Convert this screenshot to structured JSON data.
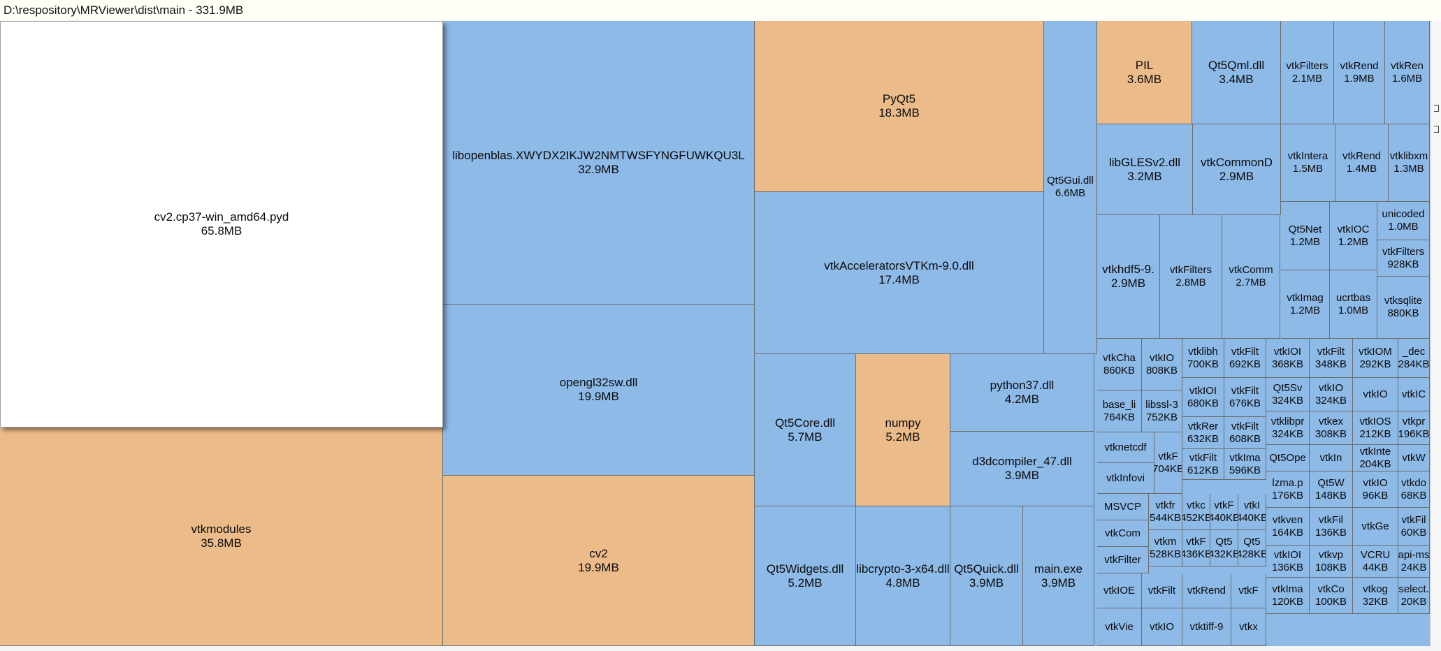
{
  "window": {
    "title": "D:\\respository\\MRViewer\\dist\\main - 331.9MB"
  },
  "colors": {
    "file": "#8ebae8",
    "folder": "#ecbb8a",
    "selected": "#ffffff",
    "border": "#6c6c6c"
  },
  "treemap": {
    "tiles": [
      {
        "name": "cv2.cp37-win_amd64.pyd",
        "size": "65.8MB",
        "kind": "selected"
      },
      {
        "name": "vtkmodules",
        "size": "35.8MB",
        "kind": "folder"
      },
      {
        "name": "libopenblas.XWYDX2IKJW2NMTWSFYNGFUWKQU3L",
        "size": "32.9MB",
        "kind": "file"
      },
      {
        "name": "opengl32sw.dll",
        "size": "19.9MB",
        "kind": "file"
      },
      {
        "name": "cv2",
        "size": "19.9MB",
        "kind": "folder"
      },
      {
        "name": "PyQt5",
        "size": "18.3MB",
        "kind": "folder"
      },
      {
        "name": "vtkAcceleratorsVTKm-9.0.dll",
        "size": "17.4MB",
        "kind": "file"
      },
      {
        "name": "Qt5Gui.dll",
        "size": "6.6MB",
        "kind": "file"
      },
      {
        "name": "Qt5Core.dll",
        "size": "5.7MB",
        "kind": "file"
      },
      {
        "name": "numpy",
        "size": "5.2MB",
        "kind": "folder"
      },
      {
        "name": "python37.dll",
        "size": "4.2MB",
        "kind": "file"
      },
      {
        "name": "d3dcompiler_47.dll",
        "size": "3.9MB",
        "kind": "file"
      },
      {
        "name": "Qt5Widgets.dll",
        "size": "5.2MB",
        "kind": "file"
      },
      {
        "name": "libcrypto-3-x64.dll",
        "size": "4.8MB",
        "kind": "file"
      },
      {
        "name": "Qt5Quick.dll",
        "size": "3.9MB",
        "kind": "file"
      },
      {
        "name": "main.exe",
        "size": "3.9MB",
        "kind": "file"
      },
      {
        "name": "PIL",
        "size": "3.6MB",
        "kind": "folder"
      },
      {
        "name": "Qt5Qml.dll",
        "size": "3.4MB",
        "kind": "file"
      },
      {
        "name": "vtkFilters",
        "size": "2.1MB",
        "kind": "file"
      },
      {
        "name": "vtkRend",
        "size": "1.9MB",
        "kind": "file"
      },
      {
        "name": "vtkRen",
        "size": "1.6MB",
        "kind": "file"
      },
      {
        "name": "libGLESv2.dll",
        "size": "3.2MB",
        "kind": "file"
      },
      {
        "name": "vtkCommonD",
        "size": "2.9MB",
        "kind": "file"
      },
      {
        "name": "vtkIntera",
        "size": "1.5MB",
        "kind": "file"
      },
      {
        "name": "vtkRend",
        "size": "1.4MB",
        "kind": "file"
      },
      {
        "name": "vtklibxm",
        "size": "1.3MB",
        "kind": "file"
      },
      {
        "name": "vtkhdf5-9.",
        "size": "2.9MB",
        "kind": "file"
      },
      {
        "name": "vtkFilters",
        "size": "2.8MB",
        "kind": "file"
      },
      {
        "name": "vtkComm",
        "size": "2.7MB",
        "kind": "file"
      },
      {
        "name": "Qt5Net",
        "size": "1.2MB",
        "kind": "file"
      },
      {
        "name": "vtkIOC",
        "size": "1.2MB",
        "kind": "file"
      },
      {
        "name": "unicoded",
        "size": "1.0MB",
        "kind": "file"
      },
      {
        "name": "vtkFilters",
        "size": "928KB",
        "kind": "file"
      },
      {
        "name": "vtkImag",
        "size": "1.2MB",
        "kind": "file"
      },
      {
        "name": "ucrtbas",
        "size": "1.0MB",
        "kind": "file"
      },
      {
        "name": "vtksqlite",
        "size": "880KB",
        "kind": "file"
      },
      {
        "name": "vtkCha",
        "size": "860KB",
        "kind": "file"
      },
      {
        "name": "vtkIO",
        "size": "808KB",
        "kind": "file"
      },
      {
        "name": "vtklibh",
        "size": "700KB",
        "kind": "file"
      },
      {
        "name": "vtkFilt",
        "size": "692KB",
        "kind": "file"
      },
      {
        "name": "vtkIOI",
        "size": "368KB",
        "kind": "file"
      },
      {
        "name": "vtkFilt",
        "size": "348KB",
        "kind": "file"
      },
      {
        "name": "vtkIOM",
        "size": "292KB",
        "kind": "file"
      },
      {
        "name": "_dec",
        "size": "284KB",
        "kind": "file"
      },
      {
        "name": "base_li",
        "size": "764KB",
        "kind": "file"
      },
      {
        "name": "libssl-3",
        "size": "752KB",
        "kind": "file"
      },
      {
        "name": "vtkIOI",
        "size": "680KB",
        "kind": "file"
      },
      {
        "name": "vtkFilt",
        "size": "676KB",
        "kind": "file"
      },
      {
        "name": "Qt5Sv",
        "size": "324KB",
        "kind": "file"
      },
      {
        "name": "vtkIO",
        "size": "324KB",
        "kind": "file"
      },
      {
        "name": "vtkIO",
        "size": "",
        "kind": "file"
      },
      {
        "name": "vtkIC",
        "size": "",
        "kind": "file"
      },
      {
        "name": "vtkRer",
        "size": "632KB",
        "kind": "file"
      },
      {
        "name": "vtkFilt",
        "size": "608KB",
        "kind": "file"
      },
      {
        "name": "vtklibpr",
        "size": "324KB",
        "kind": "file"
      },
      {
        "name": "vtkex",
        "size": "308KB",
        "kind": "file"
      },
      {
        "name": "vtkIOS",
        "size": "212KB",
        "kind": "file"
      },
      {
        "name": "vtkpr",
        "size": "196KB",
        "kind": "file"
      },
      {
        "name": "vtknetcdf",
        "size": "",
        "kind": "file"
      },
      {
        "name": "vtkInfovi",
        "size": "",
        "kind": "file"
      },
      {
        "name": "vtkF",
        "size": "704KB",
        "kind": "file"
      },
      {
        "name": "vtkFilt",
        "size": "612KB",
        "kind": "file"
      },
      {
        "name": "vtkIma",
        "size": "596KB",
        "kind": "file"
      },
      {
        "name": "Qt5Ope",
        "size": "",
        "kind": "file"
      },
      {
        "name": "vtkIn",
        "size": "",
        "kind": "file"
      },
      {
        "name": "vtkInte",
        "size": "204KB",
        "kind": "file"
      },
      {
        "name": "vtkW",
        "size": "",
        "kind": "file"
      },
      {
        "name": "MSVCP",
        "size": "",
        "kind": "file"
      },
      {
        "name": "vtkfr",
        "size": "544KB",
        "kind": "file"
      },
      {
        "name": "vtkc",
        "size": "452KB",
        "kind": "file"
      },
      {
        "name": "vtkF",
        "size": "440KB",
        "kind": "file"
      },
      {
        "name": "vtkI",
        "size": "440KB",
        "kind": "file"
      },
      {
        "name": "lzma.p",
        "size": "176KB",
        "kind": "file"
      },
      {
        "name": "Qt5W",
        "size": "148KB",
        "kind": "file"
      },
      {
        "name": "vtkIO",
        "size": "96KB",
        "kind": "file"
      },
      {
        "name": "vtkdo",
        "size": "68KB",
        "kind": "file"
      },
      {
        "name": "vtkCom",
        "size": "",
        "kind": "file"
      },
      {
        "name": "vtkFilter",
        "size": "",
        "kind": "file"
      },
      {
        "name": "vtkm",
        "size": "528KB",
        "kind": "file"
      },
      {
        "name": "vtkF",
        "size": "436KB",
        "kind": "file"
      },
      {
        "name": "Qt5",
        "size": "432KB",
        "kind": "file"
      },
      {
        "name": "Qt5",
        "size": "428KB",
        "kind": "file"
      },
      {
        "name": "vtkven",
        "size": "164KB",
        "kind": "file"
      },
      {
        "name": "vtkFil",
        "size": "136KB",
        "kind": "file"
      },
      {
        "name": "vtkGe",
        "size": "",
        "kind": "file"
      },
      {
        "name": "vtkFil",
        "size": "60KB",
        "kind": "file"
      },
      {
        "name": "vtkIOE",
        "size": "",
        "kind": "file"
      },
      {
        "name": "vtkFilt",
        "size": "",
        "kind": "file"
      },
      {
        "name": "vtkRend",
        "size": "",
        "kind": "file"
      },
      {
        "name": "vtkF",
        "size": "",
        "kind": "file"
      },
      {
        "name": "vtkIOI",
        "size": "136KB",
        "kind": "file"
      },
      {
        "name": "vtkvp",
        "size": "108KB",
        "kind": "file"
      },
      {
        "name": "VCRU",
        "size": "44KB",
        "kind": "file"
      },
      {
        "name": "api-ms",
        "size": "24KB",
        "kind": "file"
      },
      {
        "name": "vtkVie",
        "size": "",
        "kind": "file"
      },
      {
        "name": "vtkIO",
        "size": "",
        "kind": "file"
      },
      {
        "name": "vtktiff-9",
        "size": "",
        "kind": "file"
      },
      {
        "name": "vtkx",
        "size": "",
        "kind": "file"
      },
      {
        "name": "vtkIma",
        "size": "120KB",
        "kind": "file"
      },
      {
        "name": "vtkCo",
        "size": "100KB",
        "kind": "file"
      },
      {
        "name": "vtkog",
        "size": "32KB",
        "kind": "file"
      },
      {
        "name": "select.",
        "size": "20KB",
        "kind": "file"
      }
    ]
  }
}
